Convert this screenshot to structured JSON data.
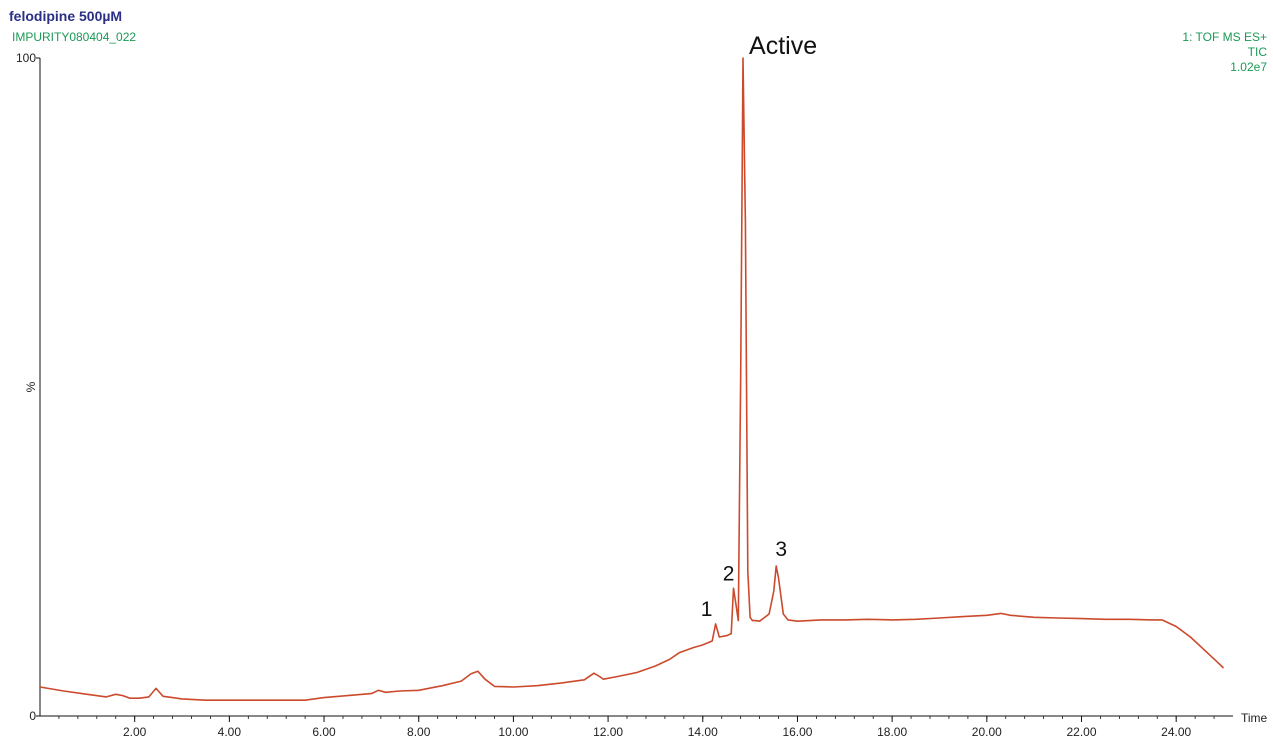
{
  "header": {
    "title": "felodipine 500µM",
    "sample_id": "IMPURITY080404_022",
    "scan_info": "1: TOF MS ES+",
    "trace_type": "TIC",
    "intensity": "1.02e7"
  },
  "colors": {
    "trace": "#cc4a2c",
    "title": "#2b2f86",
    "info": "#1a9a55",
    "axis": "#111111"
  },
  "chart_data": {
    "type": "line",
    "xlabel": "Time",
    "ylabel": "%",
    "xlim": [
      0,
      25.2
    ],
    "ylim": [
      0,
      100
    ],
    "x_ticks": [
      "2.00",
      "4.00",
      "6.00",
      "8.00",
      "10.00",
      "12.00",
      "14.00",
      "16.00",
      "18.00",
      "20.00",
      "22.00",
      "24.00"
    ],
    "y_ticks": [
      "0",
      "100"
    ],
    "grid": false,
    "legend": "none",
    "series": [
      {
        "x": [
          0,
          0.5,
          1.0,
          1.4,
          1.6,
          1.75,
          1.9,
          2.1,
          2.3,
          2.45,
          2.6,
          2.8,
          3.0,
          3.5,
          4.0,
          5.0,
          5.6,
          6.0,
          6.5,
          7.0,
          7.15,
          7.3,
          7.6,
          8.0,
          8.5,
          8.9,
          9.1,
          9.25,
          9.4,
          9.6,
          10.0,
          10.5,
          11.0,
          11.5,
          11.7,
          11.8,
          11.9,
          12.2,
          12.6,
          13.0,
          13.3,
          13.5,
          13.8,
          14.0,
          14.2,
          14.27,
          14.35,
          14.5,
          14.6,
          14.65,
          14.7,
          14.75,
          14.8,
          14.85,
          14.9,
          14.95,
          15.0,
          15.05,
          15.1,
          15.2,
          15.4,
          15.5,
          15.55,
          15.6,
          15.7,
          15.8,
          16.0,
          16.5,
          17.0,
          17.5,
          18.0,
          18.5,
          19.0,
          19.5,
          20.0,
          20.3,
          20.5,
          21.0,
          21.5,
          22.0,
          22.5,
          23.0,
          23.5,
          23.7,
          24.0,
          24.3,
          24.6,
          24.9,
          25.0
        ],
        "y": [
          4.4,
          3.8,
          3.3,
          2.9,
          3.3,
          3.1,
          2.7,
          2.7,
          2.9,
          4.2,
          3.0,
          2.8,
          2.6,
          2.4,
          2.4,
          2.4,
          2.4,
          2.8,
          3.1,
          3.4,
          3.9,
          3.6,
          3.8,
          3.9,
          4.6,
          5.3,
          6.4,
          6.8,
          5.6,
          4.5,
          4.4,
          4.6,
          5.0,
          5.5,
          6.5,
          6.1,
          5.6,
          6.0,
          6.6,
          7.6,
          8.6,
          9.6,
          10.4,
          10.8,
          11.4,
          14.0,
          12.0,
          12.2,
          12.5,
          19.4,
          17.0,
          14.5,
          52.0,
          100.0,
          75.0,
          22.0,
          15.0,
          14.5,
          14.5,
          14.4,
          15.5,
          19.0,
          22.8,
          21.0,
          15.5,
          14.6,
          14.4,
          14.6,
          14.6,
          14.7,
          14.6,
          14.7,
          14.9,
          15.1,
          15.3,
          15.6,
          15.3,
          15.0,
          14.9,
          14.8,
          14.7,
          14.7,
          14.6,
          14.6,
          13.6,
          12.0,
          10.0,
          8.0,
          7.3
        ]
      }
    ],
    "annotations": [
      {
        "text": "Active",
        "x": 14.85,
        "y": 100
      },
      {
        "text": "1",
        "x": 14.27,
        "y": 14.0
      },
      {
        "text": "2",
        "x": 14.65,
        "y": 19.4
      },
      {
        "text": "3",
        "x": 15.55,
        "y": 22.8
      }
    ]
  }
}
